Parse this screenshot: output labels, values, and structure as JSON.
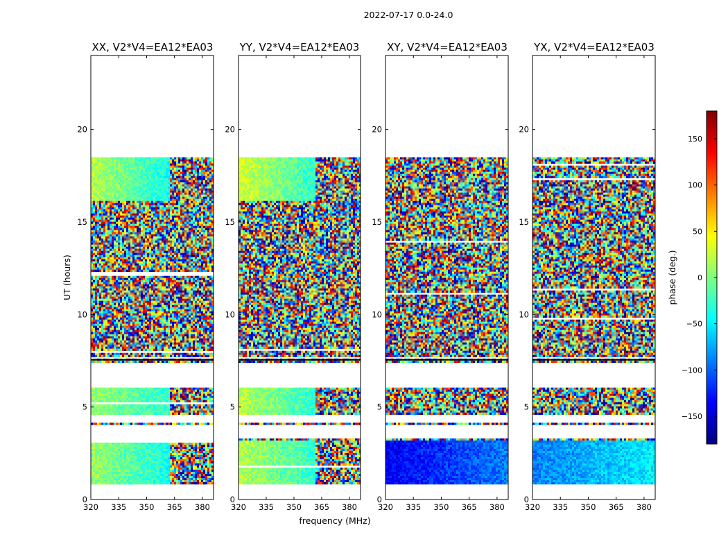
{
  "figure": {
    "suptitle": "2022-07-17 0.0-24.0",
    "colorbar": {
      "label": "phase (deg.)",
      "min": -180,
      "max": 180,
      "ticks": [
        150,
        100,
        50,
        0,
        -50,
        -100,
        -150
      ],
      "tick_labels": [
        "150",
        "100",
        "50",
        "0",
        "−50",
        "−100",
        "−150"
      ],
      "colormap": "jet",
      "colors": [
        "#00007f",
        "#0000ff",
        "#007fff",
        "#00ffff",
        "#7fff7f",
        "#ffff00",
        "#ff7f00",
        "#ff0000",
        "#7f0000"
      ]
    }
  },
  "chart_data": [
    {
      "type": "heatmap",
      "title": "XX, V2*V4=EA12*EA03",
      "xlabel": "",
      "ylabel": "UT (hours)",
      "xlim": [
        320,
        386
      ],
      "ylim": [
        0,
        24
      ],
      "xticks": [
        320,
        335,
        350,
        365,
        380
      ],
      "yticks": [
        0,
        5,
        10,
        15,
        20
      ],
      "grid": false,
      "colorscale_var": "phase (deg.)",
      "data_time_ranges_hours": [
        [
          0.85,
          3.3
        ],
        [
          4.05,
          4.15
        ],
        [
          4.6,
          6.05
        ],
        [
          7.5,
          7.62
        ],
        [
          7.7,
          18.5
        ]
      ],
      "coherent_regions": [
        {
          "freq_range": [
            320,
            362
          ],
          "time_range": [
            0.85,
            3.3
          ],
          "phase_deg": [
            10,
            -40
          ]
        },
        {
          "freq_range": [
            320,
            362
          ],
          "time_range": [
            4.6,
            6.05
          ],
          "phase_deg": [
            10,
            -30
          ]
        },
        {
          "freq_range": [
            320,
            362
          ],
          "time_range": [
            16.2,
            18.5
          ],
          "phase_deg": [
            20,
            -40
          ]
        },
        {
          "freq_range": [
            320,
            386
          ],
          "time_range": [
            7.7,
            16.2
          ],
          "phase_deg": "noise"
        }
      ]
    },
    {
      "type": "heatmap",
      "title": "YY, V2*V4=EA12*EA03",
      "xlabel": "frequency (MHz)",
      "ylabel": "",
      "xlim": [
        320,
        386
      ],
      "ylim": [
        0,
        24
      ],
      "xticks": [
        320,
        335,
        350,
        365,
        380
      ],
      "yticks": [
        0,
        5,
        10,
        15,
        20
      ],
      "grid": false,
      "colorscale_var": "phase (deg.)",
      "data_time_ranges_hours": [
        [
          0.85,
          3.3
        ],
        [
          4.05,
          4.15
        ],
        [
          4.6,
          6.05
        ],
        [
          7.5,
          7.62
        ],
        [
          7.7,
          18.5
        ]
      ],
      "coherent_regions": [
        {
          "freq_range": [
            320,
            361
          ],
          "time_range": [
            0.85,
            3.3
          ],
          "phase_deg": [
            20,
            -30
          ]
        },
        {
          "freq_range": [
            320,
            361
          ],
          "time_range": [
            4.6,
            6.05
          ],
          "phase_deg": [
            20,
            -30
          ]
        },
        {
          "freq_range": [
            320,
            361
          ],
          "time_range": [
            16.2,
            18.5
          ],
          "phase_deg": [
            30,
            -30
          ]
        },
        {
          "freq_range": [
            320,
            386
          ],
          "time_range": [
            7.7,
            16.2
          ],
          "phase_deg": "noise"
        }
      ]
    },
    {
      "type": "heatmap",
      "title": "XY, V2*V4=EA12*EA03",
      "xlabel": "",
      "ylabel": "",
      "xlim": [
        320,
        386
      ],
      "ylim": [
        0,
        24
      ],
      "xticks": [
        320,
        335,
        350,
        365,
        380
      ],
      "yticks": [
        0,
        5,
        10,
        15,
        20
      ],
      "grid": false,
      "colorscale_var": "phase (deg.)",
      "data_time_ranges_hours": [
        [
          0.85,
          3.3
        ],
        [
          4.05,
          4.15
        ],
        [
          4.6,
          6.05
        ],
        [
          7.5,
          7.62
        ],
        [
          7.7,
          18.5
        ]
      ],
      "coherent_regions": [
        {
          "freq_range": [
            320,
            386
          ],
          "time_range": [
            0.85,
            3.3
          ],
          "phase_deg": [
            -140,
            -90
          ]
        },
        {
          "freq_range": [
            320,
            386
          ],
          "time_range": [
            4.6,
            18.5
          ],
          "phase_deg": "noise"
        }
      ]
    },
    {
      "type": "heatmap",
      "title": "YX, V2*V4=EA12*EA03",
      "xlabel": "",
      "ylabel": "",
      "xlim": [
        320,
        386
      ],
      "ylim": [
        0,
        24
      ],
      "xticks": [
        320,
        335,
        350,
        365,
        380
      ],
      "yticks": [
        0,
        5,
        10,
        15,
        20
      ],
      "grid": false,
      "colorscale_var": "phase (deg.)",
      "data_time_ranges_hours": [
        [
          0.85,
          3.3
        ],
        [
          4.05,
          4.15
        ],
        [
          4.6,
          6.05
        ],
        [
          7.5,
          7.62
        ],
        [
          7.7,
          18.5
        ]
      ],
      "coherent_regions": [
        {
          "freq_range": [
            320,
            386
          ],
          "time_range": [
            0.85,
            3.3
          ],
          "phase_deg": [
            -90,
            -50
          ]
        },
        {
          "freq_range": [
            320,
            386
          ],
          "time_range": [
            4.6,
            18.5
          ],
          "phase_deg": "noise"
        }
      ]
    }
  ]
}
